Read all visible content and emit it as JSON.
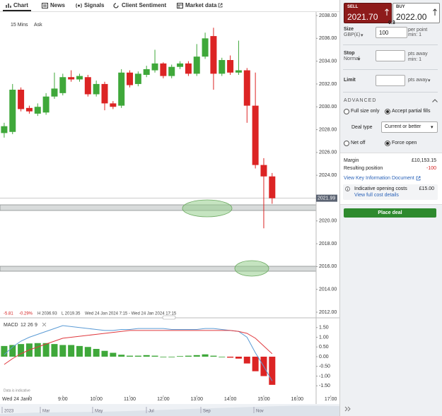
{
  "tabs": [
    "Chart",
    "News",
    "Signals",
    "Client Sentiment",
    "Market data"
  ],
  "chart_data": {
    "type": "candlestick",
    "timeframe": "15 Mins",
    "price_side": "Ask",
    "x": [
      7.25,
      7.5,
      7.75,
      8,
      8.25,
      8.5,
      8.75,
      9,
      9.25,
      9.5,
      9.75,
      10,
      10.25,
      10.5,
      10.75,
      11,
      11.25,
      11.5,
      11.75,
      12,
      12.25,
      12.5,
      12.75,
      13,
      13.25,
      13.5,
      13.75,
      14,
      14.25,
      14.5,
      14.75,
      15,
      15.25
    ],
    "open": [
      2027.7,
      2027.8,
      2031.5,
      2029.9,
      2029.4,
      2029.5,
      2030.9,
      2031.2,
      2032.6,
      2032.4,
      2032.6,
      2031.1,
      2032.0,
      2030.3,
      2030.1,
      2033.0,
      2032.0,
      2032.8,
      2033.2,
      2033.8,
      2032.7,
      2033.5,
      2033.8,
      2032.9,
      2034.4,
      2036.2,
      2032.9,
      2034.1,
      2033.0,
      2033.2,
      2030.1,
      2024.9,
      2023.9
    ],
    "high": [
      2028.6,
      2032.0,
      2031.7,
      2030.1,
      2030.3,
      2031.2,
      2033.0,
      2032.9,
      2033.2,
      2032.9,
      2032.8,
      2032.3,
      2032.2,
      2030.5,
      2033.3,
      2033.2,
      2033.1,
      2033.6,
      2035.0,
      2033.9,
      2033.7,
      2034.0,
      2034.0,
      2035.5,
      2036.5,
      2036.93,
      2034.3,
      2034.5,
      2035.8,
      2033.4,
      2033.0,
      2025.5,
      2024.2
    ],
    "low": [
      2027.3,
      2027.6,
      2029.6,
      2029.4,
      2029.2,
      2029.3,
      2030.7,
      2031.0,
      2032.2,
      2032.2,
      2030.9,
      2030.9,
      2029.7,
      2029.8,
      2029.9,
      2031.7,
      2031.8,
      2032.6,
      2033.0,
      2032.5,
      2032.5,
      2033.3,
      2032.7,
      2032.7,
      2034.2,
      2031.5,
      2032.7,
      2032.8,
      2032.8,
      2028.6,
      2024.6,
      2019.35,
      2021.5
    ],
    "close": [
      2028.3,
      2031.5,
      2029.8,
      2029.6,
      2030.0,
      2030.9,
      2031.6,
      2032.6,
      2032.4,
      2032.7,
      2031.1,
      2032.0,
      2030.3,
      2030.0,
      2033.0,
      2031.9,
      2032.9,
      2033.3,
      2033.8,
      2032.7,
      2033.5,
      2033.8,
      2032.9,
      2034.4,
      2036.0,
      2032.9,
      2034.1,
      2033.0,
      2033.2,
      2030.1,
      2024.9,
      2023.9,
      2021.99
    ],
    "up_color": "#3fa83a",
    "down_color": "#dc2424",
    "xlim": [
      7.125,
      17.125
    ],
    "xticks": [
      {
        "value": 8,
        "label": "00"
      },
      {
        "value": 9,
        "label": "9:00"
      },
      {
        "value": 10,
        "label": "10:00"
      },
      {
        "value": 11,
        "label": "11:00"
      },
      {
        "value": 12,
        "label": "12:00"
      },
      {
        "value": 13,
        "label": "13:00"
      },
      {
        "value": 14,
        "label": "14:00"
      },
      {
        "value": 15,
        "label": "15:00"
      },
      {
        "value": 16,
        "label": "16:00"
      },
      {
        "value": 17,
        "label": "17:00"
      }
    ],
    "date_label": "Wed 24 Jan",
    "ylim": [
      2012,
      2038
    ],
    "yticks": [
      {
        "value": 2012,
        "label": "2012.00"
      },
      {
        "value": 2014,
        "label": "2014.00"
      },
      {
        "value": 2016,
        "label": "2016.00"
      },
      {
        "value": 2018,
        "label": "2018.00"
      },
      {
        "value": 2020,
        "label": "2020.00"
      },
      {
        "value": 2022,
        "label": "2022.00"
      },
      {
        "value": 2024,
        "label": "2024.00"
      },
      {
        "value": 2026,
        "label": "2026.00"
      },
      {
        "value": 2028,
        "label": "2028.00"
      },
      {
        "value": 2030,
        "label": "2030.00"
      },
      {
        "value": 2032,
        "label": "2032.00"
      },
      {
        "value": 2034,
        "label": "2034.00"
      },
      {
        "value": 2036,
        "label": "2036.00"
      },
      {
        "value": 2038,
        "label": "2038.00"
      }
    ],
    "current_price": 2021.99,
    "info": [
      "-5.81",
      "-0.29%",
      "H 2036.93",
      "L 2019.35",
      "Wed 24 Jan 2024 7:15 - Wed 24 Jan 2024 17:15"
    ],
    "macd": {
      "label": "MACD",
      "params": [
        "12",
        "26",
        "9"
      ],
      "ylim": [
        -2,
        2
      ],
      "yticks": [
        {
          "value": -1.5,
          "label": "-1.50"
        },
        {
          "value": -1,
          "label": "-1.00"
        },
        {
          "value": -0.5,
          "label": "-0.50"
        },
        {
          "value": 0,
          "label": "0.00"
        },
        {
          "value": 0.5,
          "label": "0.50"
        },
        {
          "value": 1,
          "label": "1.00"
        },
        {
          "value": 1.5,
          "label": "1.50"
        }
      ],
      "histogram": [
        0.55,
        0.6,
        0.65,
        0.68,
        0.7,
        0.7,
        0.65,
        0.6,
        0.6,
        0.55,
        0.5,
        0.4,
        0.3,
        0.2,
        0.1,
        0.05,
        0.05,
        0.08,
        0.05,
        0.0,
        0.0,
        0.03,
        0.05,
        0.08,
        0.12,
        0.05,
        0.0,
        -0.05,
        -0.1,
        -0.35,
        -0.75,
        -1.0,
        -1.45
      ],
      "series": [
        {
          "color": "#5b9bd5",
          "values": [
            0.1,
            0.5,
            0.8,
            1.0,
            1.15,
            1.3,
            1.45,
            1.6,
            1.55,
            1.5,
            1.45,
            1.4,
            1.35,
            1.35,
            1.4,
            1.4,
            1.45,
            1.45,
            1.45,
            1.45,
            1.4,
            1.4,
            1.4,
            1.4,
            1.45,
            1.45,
            1.4,
            1.35,
            1.3,
            1.0,
            0.2,
            -0.5,
            -1.25
          ]
        },
        {
          "color": "#e0393e",
          "values": [
            -0.4,
            -0.1,
            0.15,
            0.35,
            0.5,
            0.65,
            0.8,
            0.95,
            1.0,
            1.05,
            1.1,
            1.15,
            1.2,
            1.25,
            1.3,
            1.35,
            1.35,
            1.35,
            1.35,
            1.35,
            1.35,
            1.35,
            1.35,
            1.35,
            1.35,
            1.35,
            1.35,
            1.35,
            1.3,
            1.2,
            0.95,
            0.55,
            0.15
          ]
        }
      ]
    },
    "note": "Data is indicative",
    "navigator_labels": [
      "2023",
      "Mar",
      "May",
      "Jul",
      "Sep",
      "Nov"
    ]
  },
  "ticket": {
    "sell_label": "SELL",
    "sell_price": "2021.70",
    "buy_label": "BUY",
    "buy_price": "2022.00",
    "spread": "0.3",
    "size_label": "Size",
    "size_unit": "GBP(£)",
    "size_value": "100",
    "size_hint": [
      "per point",
      "min: 1"
    ],
    "stop_label": "Stop",
    "stop_type": "Normal",
    "stop_hint": [
      "pts away",
      "min: 1"
    ],
    "limit_label": "Limit",
    "limit_hint": "pts away",
    "advanced": "ADVANCED",
    "fill_options": [
      "Full size only",
      "Accept partial fills"
    ],
    "deal_type_label": "Deal type",
    "deal_type": "Current or better",
    "position_options": [
      "Net off",
      "Force open"
    ],
    "margin_label": "Margin",
    "margin": "£10,153.15",
    "resulting_label": "Resulting position",
    "resulting": "-100",
    "kid_link": "View Key Information Document",
    "costs_label": "Indicative opening costs",
    "costs": "£15.00",
    "costs_link": "View full cost details",
    "place_deal": "Place deal"
  }
}
